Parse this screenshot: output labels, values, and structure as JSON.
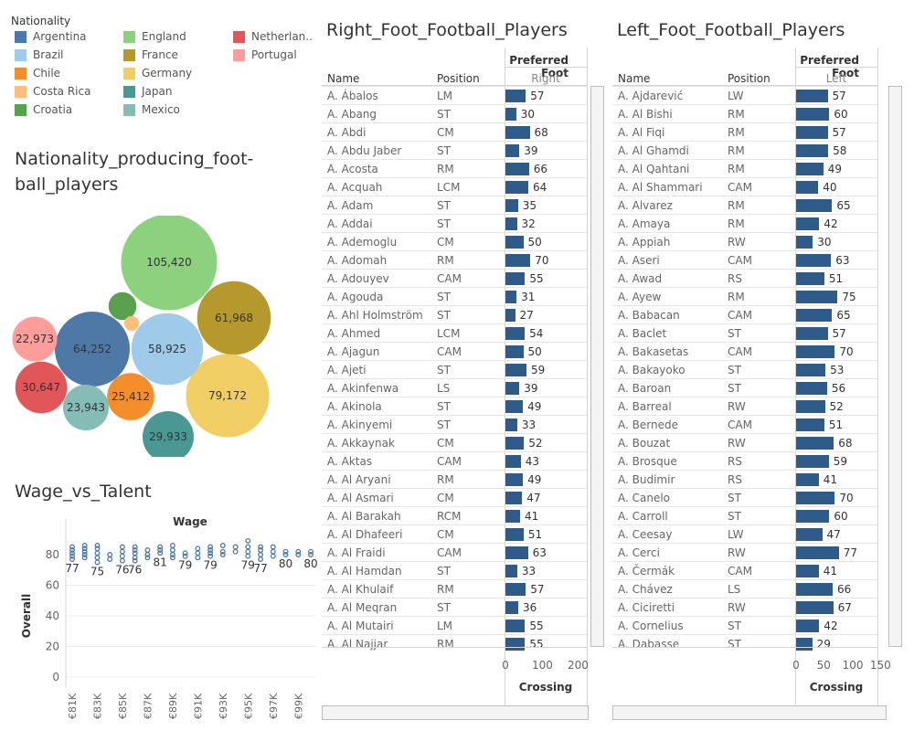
{
  "legend": {
    "title": "Nationality",
    "items": [
      {
        "label": "Argentina",
        "color": "#4e79a7"
      },
      {
        "label": "Brazil",
        "color": "#a0cbe8"
      },
      {
        "label": "Chile",
        "color": "#f28e2b"
      },
      {
        "label": "Costa Rica",
        "color": "#ffbe7d"
      },
      {
        "label": "Croatia",
        "color": "#59a14f"
      },
      {
        "label": "England",
        "color": "#8cd17d"
      },
      {
        "label": "France",
        "color": "#b6992d"
      },
      {
        "label": "Germany",
        "color": "#f1ce63"
      },
      {
        "label": "Japan",
        "color": "#499894"
      },
      {
        "label": "Mexico",
        "color": "#86bcb6"
      },
      {
        "label": "Netherlan..",
        "color": "#e15759"
      },
      {
        "label": "Portugal",
        "color": "#ff9d9a"
      }
    ]
  },
  "chart_data": [
    {
      "type": "bubble",
      "title": "Nationality_producing_football_players",
      "title_lines": [
        "Nationality_producing_foot-",
        "ball_players"
      ],
      "series": [
        {
          "name": "England",
          "value": 105420,
          "label": "105,420",
          "color": "#8cd17d"
        },
        {
          "name": "France",
          "value": 61968,
          "label": "61,968",
          "color": "#b6992d"
        },
        {
          "name": "Germany",
          "value": 79172,
          "label": "79,172",
          "color": "#f1ce63"
        },
        {
          "name": "Argentina",
          "value": 64252,
          "label": "64,252",
          "color": "#4e79a7"
        },
        {
          "name": "Brazil",
          "value": 58925,
          "label": "58,925",
          "color": "#a0cbe8"
        },
        {
          "name": "Netherlands",
          "value": 30647,
          "label": "30,647",
          "color": "#e15759"
        },
        {
          "name": "Japan",
          "value": 29933,
          "label": "29,933",
          "color": "#499894"
        },
        {
          "name": "Chile",
          "value": 25412,
          "label": "25,412",
          "color": "#f28e2b"
        },
        {
          "name": "Mexico",
          "value": 23943,
          "label": "23,943",
          "color": "#86bcb6"
        },
        {
          "name": "Portugal",
          "value": 22973,
          "label": "22,973",
          "color": "#ff9d9a"
        },
        {
          "name": "Croatia",
          "value": 9000,
          "label": "",
          "color": "#59a14f"
        },
        {
          "name": "Costa Rica",
          "value": 2500,
          "label": "",
          "color": "#ffbe7d"
        }
      ]
    },
    {
      "type": "scatter",
      "title": "Wage_vs_Talent",
      "xlabel": "Wage",
      "ylabel": "Overall",
      "ylim": [
        0,
        90
      ],
      "yticks": [
        0,
        20,
        40,
        60,
        80
      ],
      "xticks": [
        "€81K",
        "€83K",
        "€85K",
        "€87K",
        "€89K",
        "€91K",
        "€93K",
        "€95K",
        "€97K",
        "€99K"
      ],
      "columns": [
        {
          "x": "€81K",
          "min": 77,
          "pts": [
            77,
            79,
            81,
            83,
            85
          ]
        },
        {
          "x": "€82K",
          "min": 78,
          "pts": [
            78,
            80,
            82,
            84,
            86
          ]
        },
        {
          "x": "€83K",
          "min": 75,
          "pts": [
            75,
            78,
            81,
            84,
            86
          ]
        },
        {
          "x": "€84K",
          "min": 77,
          "pts": [
            77,
            80
          ]
        },
        {
          "x": "€85K",
          "min": 76,
          "pts": [
            76,
            79,
            82,
            85
          ]
        },
        {
          "x": "€86K",
          "min": 76,
          "pts": [
            76,
            78,
            81,
            83,
            85
          ]
        },
        {
          "x": "€87K",
          "min": 78,
          "pts": [
            78,
            80,
            83
          ]
        },
        {
          "x": "€88K",
          "min": 81,
          "pts": [
            81,
            83,
            85
          ]
        },
        {
          "x": "€89K",
          "min": 78,
          "pts": [
            78,
            80,
            83,
            86
          ]
        },
        {
          "x": "€90K",
          "min": 79,
          "pts": [
            79,
            81
          ]
        },
        {
          "x": "€91K",
          "min": 78,
          "pts": [
            78,
            81,
            84
          ]
        },
        {
          "x": "€92K",
          "min": 79,
          "pts": [
            79,
            81,
            83,
            85
          ]
        },
        {
          "x": "€93K",
          "min": 80,
          "pts": [
            80,
            82,
            86
          ]
        },
        {
          "x": "€94K",
          "min": 82,
          "pts": [
            82,
            85
          ]
        },
        {
          "x": "€95K",
          "min": 79,
          "pts": [
            79,
            82,
            85,
            89
          ]
        },
        {
          "x": "€96K",
          "min": 77,
          "pts": [
            77,
            80,
            83,
            85
          ]
        },
        {
          "x": "€97K",
          "min": 79,
          "pts": [
            79,
            82,
            85
          ]
        },
        {
          "x": "€98K",
          "min": 80,
          "pts": [
            80,
            82
          ]
        },
        {
          "x": "€99K",
          "min": 80,
          "pts": [
            80,
            82
          ]
        },
        {
          "x": "€100K",
          "min": 80,
          "pts": [
            80,
            82
          ]
        }
      ],
      "min_labels": [
        {
          "x": "€81K",
          "text": "77"
        },
        {
          "x": "€83K",
          "text": "75"
        },
        {
          "x": "€85K",
          "text": "76"
        },
        {
          "x": "€86K",
          "text": "76"
        },
        {
          "x": "€88K",
          "text": "81"
        },
        {
          "x": "€90K",
          "text": "79"
        },
        {
          "x": "€92K",
          "text": "79"
        },
        {
          "x": "€95K",
          "text": "79"
        },
        {
          "x": "€96K",
          "text": "77"
        },
        {
          "x": "€98K",
          "text": "80"
        },
        {
          "x": "€100K",
          "text": "80"
        }
      ]
    },
    {
      "type": "table",
      "title": "Right_Foot_Football_Players",
      "columns": [
        "Name",
        "Position"
      ],
      "header_top": "Preferred Foot",
      "header_sub": "Right",
      "measure": "Crossing",
      "xticks": [
        0,
        100,
        200
      ],
      "xmax": 200,
      "rows": [
        [
          "A. Ábalos",
          "LM",
          57
        ],
        [
          "A. Abang",
          "ST",
          30
        ],
        [
          "A. Abdi",
          "CM",
          68
        ],
        [
          "A. Abdu Jaber",
          "ST",
          39
        ],
        [
          "A. Acosta",
          "RM",
          66
        ],
        [
          "A. Acquah",
          "LCM",
          64
        ],
        [
          "A. Adam",
          "ST",
          35
        ],
        [
          "A. Addai",
          "ST",
          32
        ],
        [
          "A. Ademoglu",
          "CM",
          50
        ],
        [
          "A. Adomah",
          "RM",
          70
        ],
        [
          "A. Adouyev",
          "CAM",
          55
        ],
        [
          "A. Agouda",
          "ST",
          31
        ],
        [
          "A. Ahl Holmström",
          "ST",
          27
        ],
        [
          "A. Ahmed",
          "LCM",
          54
        ],
        [
          "A. Ajagun",
          "CAM",
          50
        ],
        [
          "A. Ajeti",
          "ST",
          59
        ],
        [
          "A. Akinfenwa",
          "LS",
          39
        ],
        [
          "A. Akinola",
          "ST",
          49
        ],
        [
          "A. Akinyemi",
          "ST",
          33
        ],
        [
          "A. Akkaynak",
          "CM",
          52
        ],
        [
          "A. Aktas",
          "CAM",
          43
        ],
        [
          "A. Al Aryani",
          "RM",
          49
        ],
        [
          "A. Al Asmari",
          "CM",
          47
        ],
        [
          "A. Al Barakah",
          "RCM",
          41
        ],
        [
          "A. Al Dhafeeri",
          "CM",
          51
        ],
        [
          "A. Al Fraidi",
          "CAM",
          63
        ],
        [
          "A. Al Hamdan",
          "ST",
          33
        ],
        [
          "A. Al Khulaif",
          "RM",
          57
        ],
        [
          "A. Al Meqran",
          "ST",
          36
        ],
        [
          "A. Al Mutairi",
          "LM",
          55
        ],
        [
          "A. Al Najjar",
          "RM",
          55
        ]
      ]
    },
    {
      "type": "table",
      "title": "Left_Foot_Football_Players",
      "columns": [
        "Name",
        "Position"
      ],
      "header_top": "Preferred Foot",
      "header_sub": "Left",
      "measure": "Crossing",
      "xticks": [
        0,
        50,
        100,
        150
      ],
      "xmax": 170,
      "rows": [
        [
          "A. Ajdarević",
          "LW",
          57
        ],
        [
          "A. Al Bishi",
          "RM",
          60
        ],
        [
          "A. Al Fiqi",
          "RM",
          57
        ],
        [
          "A. Al Ghamdi",
          "RM",
          58
        ],
        [
          "A. Al Qahtani",
          "RM",
          49
        ],
        [
          "A. Al Shammari",
          "CAM",
          40
        ],
        [
          "A. Alvarez",
          "RM",
          65
        ],
        [
          "A. Amaya",
          "RM",
          42
        ],
        [
          "A. Appiah",
          "RW",
          30
        ],
        [
          "A. Aseri",
          "CAM",
          63
        ],
        [
          "A. Awad",
          "RS",
          51
        ],
        [
          "A. Ayew",
          "RM",
          75
        ],
        [
          "A. Babacan",
          "CAM",
          65
        ],
        [
          "A. Baclet",
          "ST",
          57
        ],
        [
          "A. Bakasetas",
          "CAM",
          70
        ],
        [
          "A. Bakayoko",
          "ST",
          53
        ],
        [
          "A. Baroan",
          "ST",
          56
        ],
        [
          "A. Barreal",
          "RW",
          52
        ],
        [
          "A. Bernede",
          "CAM",
          51
        ],
        [
          "A. Bouzat",
          "RW",
          68
        ],
        [
          "A. Brosque",
          "RS",
          59
        ],
        [
          "A. Budimir",
          "RS",
          41
        ],
        [
          "A. Canelo",
          "ST",
          70
        ],
        [
          "A. Carroll",
          "ST",
          60
        ],
        [
          "A. Ceesay",
          "LW",
          47
        ],
        [
          "A. Cerci",
          "RW",
          77
        ],
        [
          "A. Čermák",
          "CAM",
          41
        ],
        [
          "A. Chávez",
          "LS",
          66
        ],
        [
          "A. Ciciretti",
          "RW",
          67
        ],
        [
          "A. Cornelius",
          "ST",
          42
        ],
        [
          "A. Dabasse",
          "ST",
          29
        ]
      ]
    }
  ]
}
